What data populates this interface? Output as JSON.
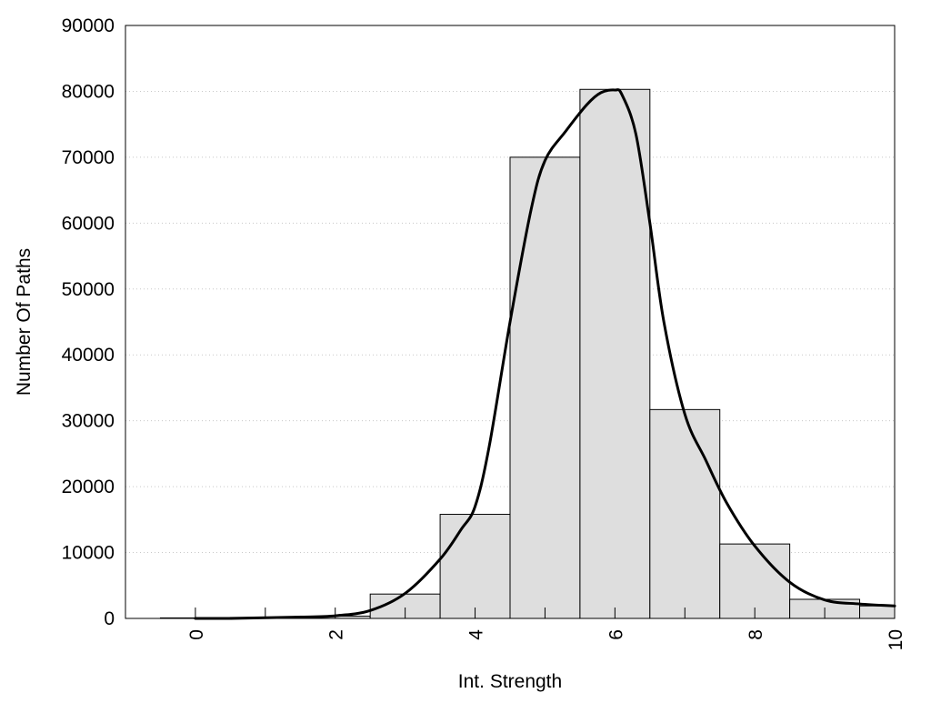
{
  "chart_data": {
    "type": "bar",
    "subtype": "histogram with density curve",
    "title": "",
    "xlabel": "Int. Strength",
    "ylabel": "Number Of Paths",
    "xlim": [
      -1,
      10
    ],
    "ylim": [
      0,
      90000
    ],
    "x_ticks": [
      0,
      2,
      4,
      6,
      8,
      10
    ],
    "y_ticks": [
      0,
      10000,
      20000,
      30000,
      40000,
      50000,
      60000,
      70000,
      80000,
      90000
    ],
    "grid": "horizontal dotted",
    "legend": "none",
    "bar_width": 1,
    "bins": [
      {
        "x": 0,
        "value": 80
      },
      {
        "x": 1,
        "value": 150
      },
      {
        "x": 2,
        "value": 350
      },
      {
        "x": 3,
        "value": 3700
      },
      {
        "x": 4,
        "value": 15800
      },
      {
        "x": 5,
        "value": 70000
      },
      {
        "x": 6,
        "value": 80300
      },
      {
        "x": 7,
        "value": 31700
      },
      {
        "x": 8,
        "value": 11300
      },
      {
        "x": 9,
        "value": 2900
      },
      {
        "x": 10,
        "value": 1900
      }
    ],
    "curve": {
      "x": [
        0,
        0.5,
        1,
        1.5,
        2,
        2.5,
        3,
        3.5,
        3.8,
        4,
        4.2,
        4.5,
        4.8,
        5,
        5.3,
        5.6,
        5.8,
        6,
        6.1,
        6.3,
        6.5,
        6.7,
        7,
        7.3,
        7.6,
        8,
        8.5,
        9,
        9.5,
        10
      ],
      "y": [
        0,
        0,
        100,
        200,
        400,
        1200,
        3800,
        9000,
        13500,
        17000,
        26000,
        45000,
        62000,
        69500,
        74000,
        78000,
        79800,
        80200,
        79500,
        73500,
        60000,
        45000,
        31000,
        24000,
        17500,
        11000,
        5500,
        2800,
        2200,
        1900
      ]
    },
    "colors": {
      "bar_fill": "#dedede",
      "bar_stroke": "#000000",
      "curve": "#000000",
      "grid": "#c8c8c8"
    }
  }
}
